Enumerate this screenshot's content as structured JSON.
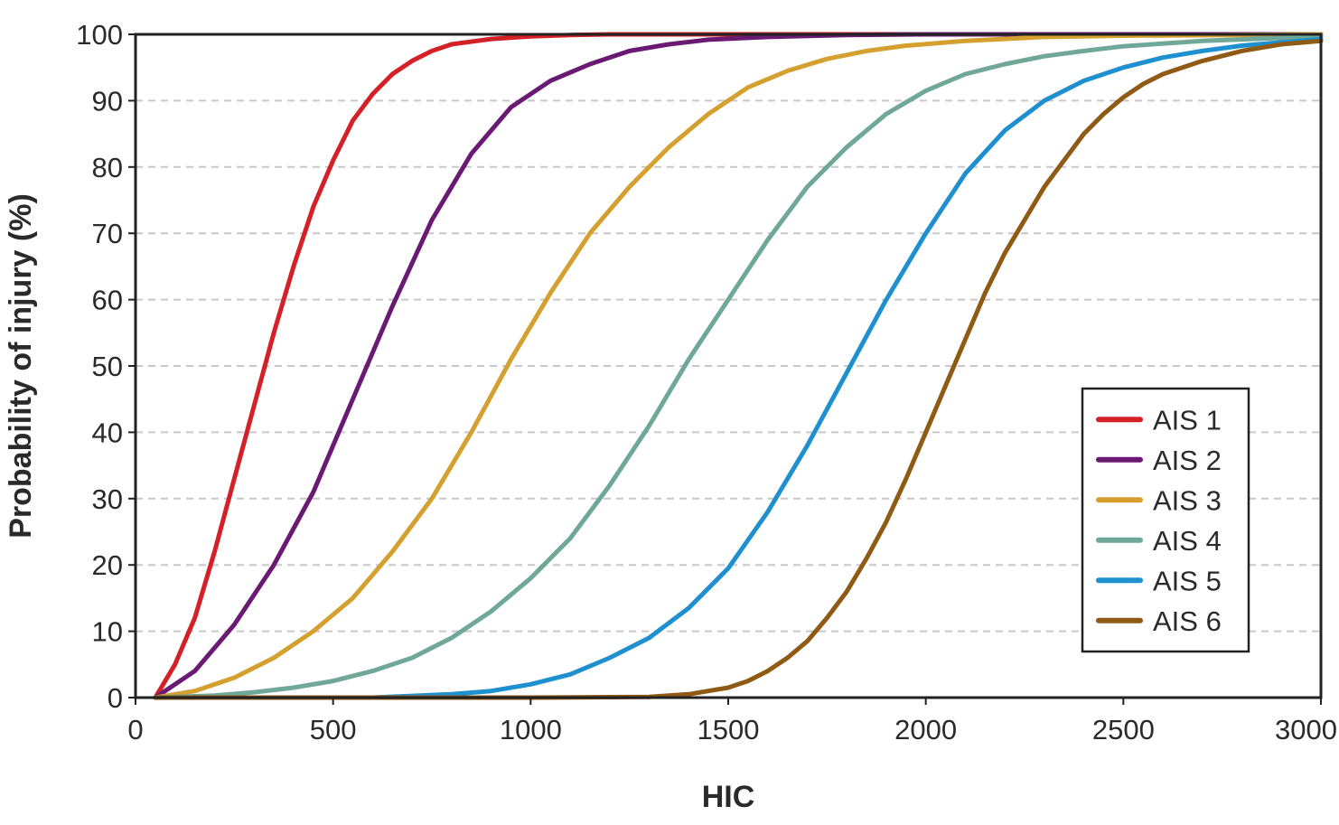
{
  "chart_data": {
    "type": "line",
    "title": "",
    "xlabel": "HIC",
    "ylabel": "Probability of injury (%)",
    "xlim": [
      0,
      3000
    ],
    "ylim": [
      0,
      100
    ],
    "xticks": [
      0,
      500,
      1000,
      1500,
      2000,
      2500,
      3000
    ],
    "yticks": [
      0,
      10,
      20,
      30,
      40,
      50,
      60,
      70,
      80,
      90,
      100
    ],
    "grid": "horizontal-dashed",
    "legend_position": "right",
    "series": [
      {
        "name": "AIS 1",
        "color": "#d42027",
        "x": [
          50,
          100,
          150,
          200,
          250,
          300,
          350,
          400,
          450,
          500,
          550,
          600,
          650,
          700,
          750,
          800,
          900,
          1000,
          1100,
          1200,
          1500,
          2000,
          3000
        ],
        "y": [
          0,
          5,
          12,
          22,
          33,
          44,
          55,
          65,
          74,
          81,
          87,
          91,
          94,
          96,
          97.5,
          98.5,
          99.3,
          99.7,
          99.9,
          100,
          100,
          100,
          100
        ]
      },
      {
        "name": "AIS 2",
        "color": "#6a1a73",
        "x": [
          50,
          150,
          250,
          350,
          450,
          550,
          650,
          750,
          850,
          950,
          1050,
          1150,
          1250,
          1350,
          1450,
          1600,
          1800,
          2000,
          3000
        ],
        "y": [
          0,
          4,
          11,
          20,
          31,
          45,
          59,
          72,
          82,
          89,
          93,
          95.5,
          97.5,
          98.5,
          99.2,
          99.6,
          99.9,
          100,
          100
        ]
      },
      {
        "name": "AIS 3",
        "color": "#d4a030",
        "x": [
          50,
          150,
          250,
          350,
          450,
          550,
          650,
          750,
          850,
          950,
          1050,
          1150,
          1250,
          1350,
          1450,
          1550,
          1650,
          1750,
          1850,
          1950,
          2100,
          2300,
          2500,
          3000
        ],
        "y": [
          0,
          1,
          3,
          6,
          10,
          15,
          22,
          30,
          40,
          51,
          61,
          70,
          77,
          83,
          88,
          92,
          94.5,
          96.3,
          97.5,
          98.3,
          99,
          99.6,
          99.8,
          100
        ]
      },
      {
        "name": "AIS 4",
        "color": "#6fa899",
        "x": [
          50,
          200,
          300,
          400,
          500,
          600,
          700,
          800,
          900,
          1000,
          1100,
          1200,
          1300,
          1400,
          1500,
          1600,
          1700,
          1800,
          1900,
          2000,
          2100,
          2200,
          2300,
          2400,
          2500,
          2700,
          3000
        ],
        "y": [
          0,
          0.3,
          0.8,
          1.5,
          2.5,
          4,
          6,
          9,
          13,
          18,
          24,
          32,
          41,
          51,
          60,
          69,
          77,
          83,
          88,
          91.5,
          94,
          95.5,
          96.7,
          97.5,
          98.2,
          99,
          99.7
        ]
      },
      {
        "name": "AIS 5",
        "color": "#1e90d0",
        "x": [
          600,
          800,
          900,
          1000,
          1100,
          1200,
          1300,
          1400,
          1500,
          1600,
          1700,
          1800,
          1900,
          2000,
          2100,
          2200,
          2300,
          2400,
          2500,
          2600,
          2700,
          2800,
          3000
        ],
        "y": [
          0,
          0.5,
          1,
          2,
          3.5,
          6,
          9,
          13.5,
          19.5,
          28,
          38,
          49,
          60,
          70,
          79,
          85.5,
          90,
          93,
          95,
          96.5,
          97.5,
          98.3,
          99.3
        ]
      },
      {
        "name": "AIS 6",
        "color": "#8f5a14",
        "x": [
          50,
          500,
          1000,
          1300,
          1400,
          1500,
          1550,
          1600,
          1650,
          1700,
          1750,
          1800,
          1850,
          1900,
          1950,
          2000,
          2050,
          2100,
          2150,
          2200,
          2250,
          2300,
          2350,
          2400,
          2450,
          2500,
          2550,
          2600,
          2700,
          2800,
          2900,
          3000
        ],
        "y": [
          0,
          0,
          0,
          0.1,
          0.5,
          1.5,
          2.5,
          4,
          6,
          8.5,
          12,
          16,
          21,
          26.5,
          33,
          40,
          47,
          54,
          61,
          67,
          72,
          77,
          81,
          85,
          88,
          90.5,
          92.5,
          94,
          96,
          97.5,
          98.5,
          99
        ]
      }
    ]
  }
}
